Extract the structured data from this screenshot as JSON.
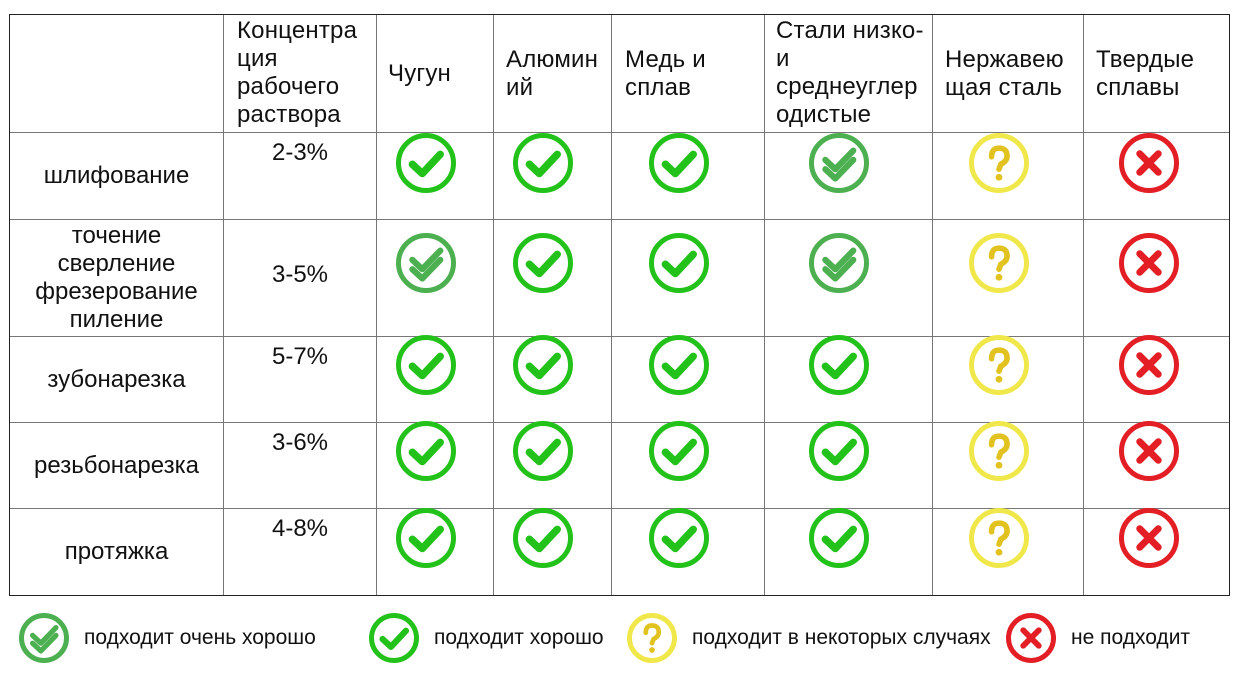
{
  "columns": [
    "",
    "Концентра ция рабочего раствора",
    "Чугун",
    "Алюмин ий",
    "Медь и сплав",
    "Стали низко- и среднеуглер одистые",
    "Нержавею щая сталь",
    "Твердые сплавы"
  ],
  "header_lines": {
    "concentration": [
      "Концентра",
      "ция",
      "рабочего",
      "раствора"
    ],
    "cast_iron": [
      "Чугун"
    ],
    "aluminum": [
      "Алюмин",
      "ий"
    ],
    "copper": [
      "Медь и",
      "сплав"
    ],
    "steel": [
      "Стали низко-",
      "и",
      "среднеуглер",
      "одистые"
    ],
    "stainless": [
      "Нержавею",
      "щая сталь"
    ],
    "hard_alloys": [
      "Твердые",
      "сплавы"
    ]
  },
  "rows": [
    {
      "operation": [
        "шлифование"
      ],
      "concentration": "2-3%",
      "ratings": [
        "good",
        "good",
        "good",
        "very_good",
        "some",
        "no"
      ]
    },
    {
      "operation": [
        "точение",
        "сверление",
        "фрезерование",
        "пиление"
      ],
      "concentration": "3-5%",
      "ratings": [
        "very_good",
        "good",
        "good",
        "very_good",
        "some",
        "no"
      ]
    },
    {
      "operation": [
        "зубонарезка"
      ],
      "concentration": "5-7%",
      "ratings": [
        "good",
        "good",
        "good",
        "good",
        "some",
        "no"
      ]
    },
    {
      "operation": [
        "резьбонарезка"
      ],
      "concentration": "3-6%",
      "ratings": [
        "good",
        "good",
        "good",
        "good",
        "some",
        "no"
      ]
    },
    {
      "operation": [
        "протяжка"
      ],
      "concentration": "4-8%",
      "ratings": [
        "good",
        "good",
        "good",
        "good",
        "some",
        "no"
      ]
    }
  ],
  "legend": {
    "very_good": "подходит очень хорошо",
    "good": "подходит хорошо",
    "some": "подходит в некоторых случаях",
    "no": "не подходит"
  },
  "icons": {
    "very_good": "double-check-circle-icon",
    "good": "check-circle-icon",
    "some": "question-circle-icon",
    "no": "cross-circle-icon"
  },
  "colors": {
    "very_good": "#4caf50",
    "good": "#22c21a",
    "some": "#f0e84a",
    "no": "#e31e24"
  }
}
